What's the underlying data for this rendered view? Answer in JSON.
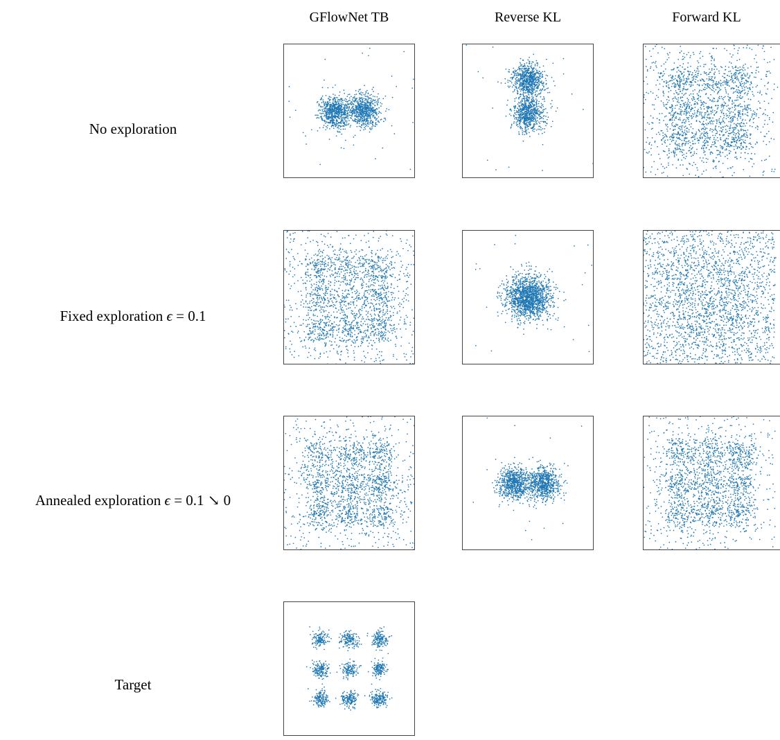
{
  "columns": [
    "GFlowNet TB",
    "Reverse KL",
    "Forward KL"
  ],
  "rows": [
    {
      "label": "No exploration"
    },
    {
      "label_prefix": "Fixed exploration ",
      "label_eps": "ϵ",
      "label_suffix": " = 0.1"
    },
    {
      "label_prefix": "Annealed exploration ",
      "label_eps": "ϵ",
      "label_suffix": " = 0.1 ↘ 0"
    },
    {
      "label": "Target"
    }
  ],
  "colors": {
    "points": "#1f77b4",
    "frame": "#444444"
  },
  "chart_data": {
    "type": "scatter",
    "grid": false,
    "axes_visible": false,
    "panel_range": {
      "x": [
        -4.5,
        4.5
      ],
      "y": [
        -4.5,
        4.5
      ]
    },
    "panels": [
      {
        "row": 0,
        "col": 0,
        "n": 1400,
        "uniform_frac": 0.02,
        "modes": [
          [
            -1.0,
            0.0,
            0.55
          ],
          [
            1.0,
            0.0,
            0.55
          ]
        ]
      },
      {
        "row": 0,
        "col": 1,
        "n": 1400,
        "uniform_frac": 0.01,
        "modes": [
          [
            0.0,
            2.1,
            0.55
          ],
          [
            0.0,
            -0.15,
            0.55
          ]
        ]
      },
      {
        "row": 0,
        "col": 2,
        "n": 1900,
        "uniform_frac": 0.3,
        "modes": [
          [
            -2.0,
            2.0,
            0.6
          ],
          [
            0.0,
            2.0,
            0.75
          ],
          [
            2.0,
            2.0,
            0.6
          ],
          [
            -2.0,
            0.0,
            0.6
          ],
          [
            0.0,
            0.0,
            0.75
          ],
          [
            2.0,
            0.0,
            0.6
          ],
          [
            -2.0,
            -2.0,
            0.6
          ],
          [
            0.0,
            -2.0,
            0.75
          ],
          [
            2.0,
            -2.0,
            0.6
          ]
        ]
      },
      {
        "row": 1,
        "col": 0,
        "n": 1900,
        "uniform_frac": 0.28,
        "modes": [
          [
            -2.0,
            2.0,
            0.6
          ],
          [
            0.0,
            2.0,
            0.65
          ],
          [
            2.0,
            2.0,
            0.6
          ],
          [
            -2.0,
            0.0,
            0.6
          ],
          [
            0.0,
            0.0,
            0.7
          ],
          [
            2.0,
            0.0,
            0.6
          ],
          [
            -2.0,
            -2.0,
            0.6
          ],
          [
            0.0,
            -2.0,
            0.65
          ],
          [
            2.0,
            -2.0,
            0.6
          ]
        ]
      },
      {
        "row": 1,
        "col": 1,
        "n": 1500,
        "uniform_frac": 0.01,
        "modes": [
          [
            0.0,
            0.0,
            0.75
          ]
        ]
      },
      {
        "row": 1,
        "col": 2,
        "n": 2300,
        "uniform_frac": 0.7,
        "modes": [
          [
            -2.0,
            2.0,
            0.9
          ],
          [
            0.0,
            2.0,
            0.9
          ],
          [
            2.0,
            2.0,
            0.9
          ],
          [
            -2.0,
            0.0,
            0.9
          ],
          [
            0.0,
            0.0,
            0.9
          ],
          [
            2.0,
            0.0,
            0.9
          ],
          [
            -2.0,
            -2.0,
            0.9
          ],
          [
            0.0,
            -2.0,
            0.9
          ],
          [
            2.0,
            -2.0,
            0.9
          ]
        ]
      },
      {
        "row": 2,
        "col": 0,
        "n": 1900,
        "uniform_frac": 0.25,
        "modes": [
          [
            -2.0,
            2.0,
            0.6
          ],
          [
            0.0,
            2.0,
            0.6
          ],
          [
            2.0,
            2.0,
            0.6
          ],
          [
            -2.0,
            0.0,
            0.6
          ],
          [
            0.0,
            0.0,
            0.6
          ],
          [
            2.0,
            0.0,
            0.6
          ],
          [
            -2.0,
            -2.0,
            0.6
          ],
          [
            0.0,
            -2.0,
            0.6
          ],
          [
            2.0,
            -2.0,
            0.6
          ]
        ]
      },
      {
        "row": 2,
        "col": 1,
        "n": 1400,
        "uniform_frac": 0.01,
        "modes": [
          [
            -1.0,
            0.0,
            0.55
          ],
          [
            1.0,
            0.0,
            0.55
          ]
        ]
      },
      {
        "row": 2,
        "col": 2,
        "n": 1900,
        "uniform_frac": 0.25,
        "modes": [
          [
            -2.0,
            2.0,
            0.6
          ],
          [
            0.0,
            2.0,
            0.6
          ],
          [
            2.0,
            2.0,
            0.6
          ],
          [
            -2.0,
            0.0,
            0.6
          ],
          [
            0.0,
            0.0,
            0.6
          ],
          [
            2.0,
            0.0,
            0.6
          ],
          [
            -2.0,
            -2.0,
            0.6
          ],
          [
            0.0,
            -2.0,
            0.6
          ],
          [
            2.0,
            -2.0,
            0.6
          ]
        ]
      },
      {
        "row": 3,
        "col": 0,
        "n": 1350,
        "uniform_frac": 0.0,
        "modes": [
          [
            -2.0,
            2.0,
            0.28
          ],
          [
            0.0,
            2.0,
            0.28
          ],
          [
            2.0,
            2.0,
            0.28
          ],
          [
            -2.0,
            0.0,
            0.28
          ],
          [
            0.0,
            0.0,
            0.28
          ],
          [
            2.0,
            0.0,
            0.28
          ],
          [
            -2.0,
            -2.0,
            0.28
          ],
          [
            0.0,
            -2.0,
            0.28
          ],
          [
            2.0,
            -2.0,
            0.28
          ]
        ]
      }
    ]
  }
}
